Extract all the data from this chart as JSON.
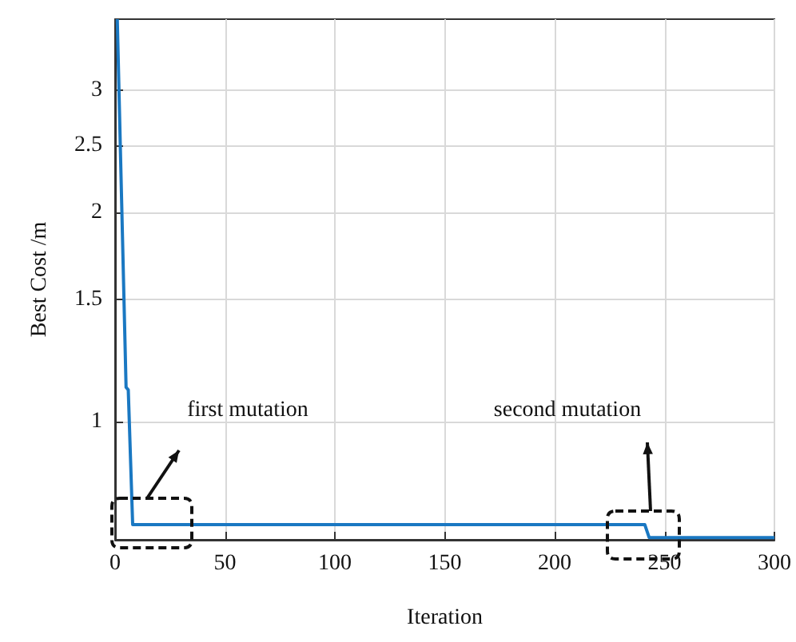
{
  "chart_data": {
    "type": "line",
    "xlabel": "Iteration",
    "ylabel": "Best Cost /m",
    "series": [
      {
        "color": "#1a78c2",
        "x": [
          1,
          5,
          6,
          8,
          241,
          243,
          300
        ],
        "values": [
          3.8,
          1.12,
          1.11,
          0.71,
          0.71,
          0.68,
          0.68
        ]
      }
    ],
    "xlim": [
      0,
      300
    ],
    "xticks": [
      0,
      50,
      100,
      150,
      200,
      250,
      300
    ],
    "ylim": [
      0.675,
      3.8
    ],
    "yticks": [
      1,
      1.5,
      2,
      2.5,
      3
    ],
    "log": "y",
    "grid": true,
    "marker": "none",
    "line_style": "solid",
    "annotations": [
      "first mutation",
      "second mutation"
    ]
  }
}
